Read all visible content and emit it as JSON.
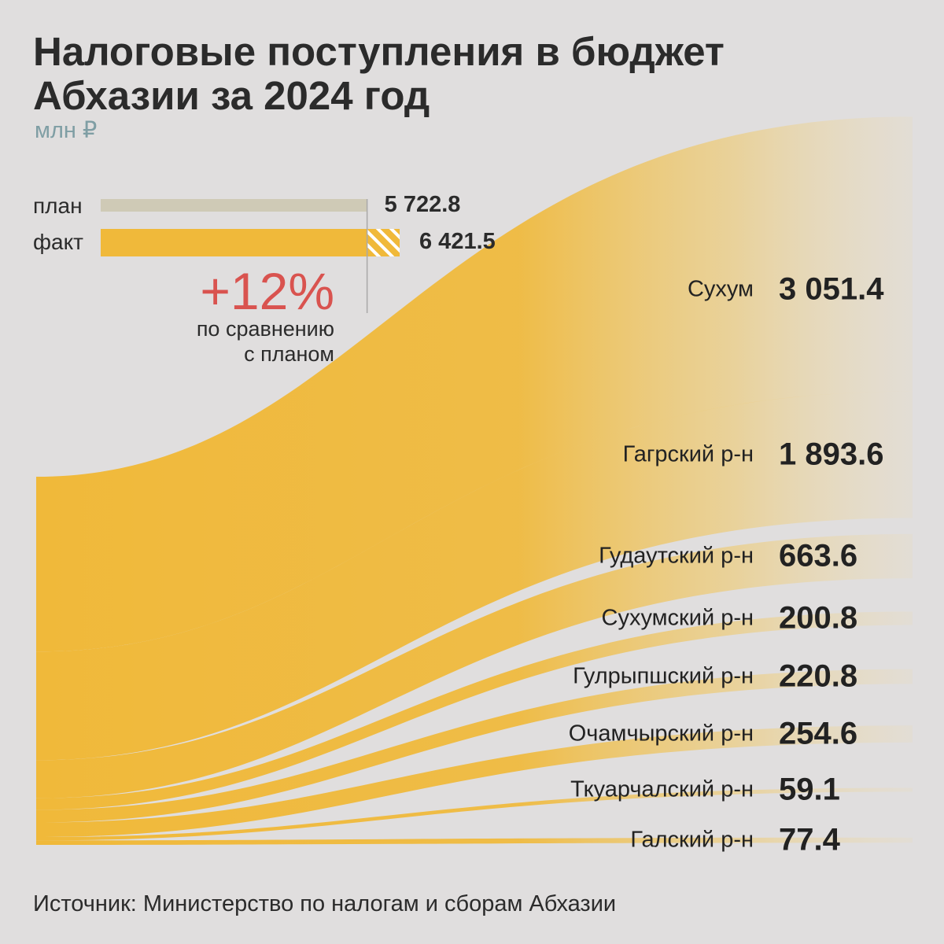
{
  "title_lines": [
    "Налоговые поступления в бюджет",
    "Абхазии за 2024 год"
  ],
  "unit": "млн ₽",
  "colors": {
    "flow": "#f0b93a",
    "plan_bar": "#cfcab6",
    "accent_red": "#d9534f",
    "unit_text": "#7f9ea4",
    "background": "#e0dede"
  },
  "comparison": {
    "plan_label": "план",
    "plan_value": "5 722.8",
    "fact_label": "факт",
    "fact_value": "6 421.5",
    "percent": "+12%",
    "note_lines": [
      "по сравнению",
      "с планом"
    ]
  },
  "chart_data": {
    "type": "sankey",
    "source_total": 6421.5,
    "plan": 5722.8,
    "fact": 6421.5,
    "nodes": [
      {
        "name": "Сухум",
        "value": 3051.4,
        "label": "3 051.4"
      },
      {
        "name": "Гагрский р-н",
        "value": 1893.6,
        "label": "1 893.6"
      },
      {
        "name": "Гудаутский р-н",
        "value": 663.6,
        "label": "663.6"
      },
      {
        "name": "Сухумский р-н",
        "value": 200.8,
        "label": "200.8"
      },
      {
        "name": "Гулрыпшский р-н",
        "value": 220.8,
        "label": "220.8"
      },
      {
        "name": "Очамчырский р-н",
        "value": 254.6,
        "label": "254.6"
      },
      {
        "name": "Ткуарчалский р-н",
        "value": 59.1,
        "label": "59.1"
      },
      {
        "name": "Галский р-н",
        "value": 77.4,
        "label": "77.4"
      }
    ]
  },
  "source": "Источник: Министерство по налогам и сборам Абхазии"
}
